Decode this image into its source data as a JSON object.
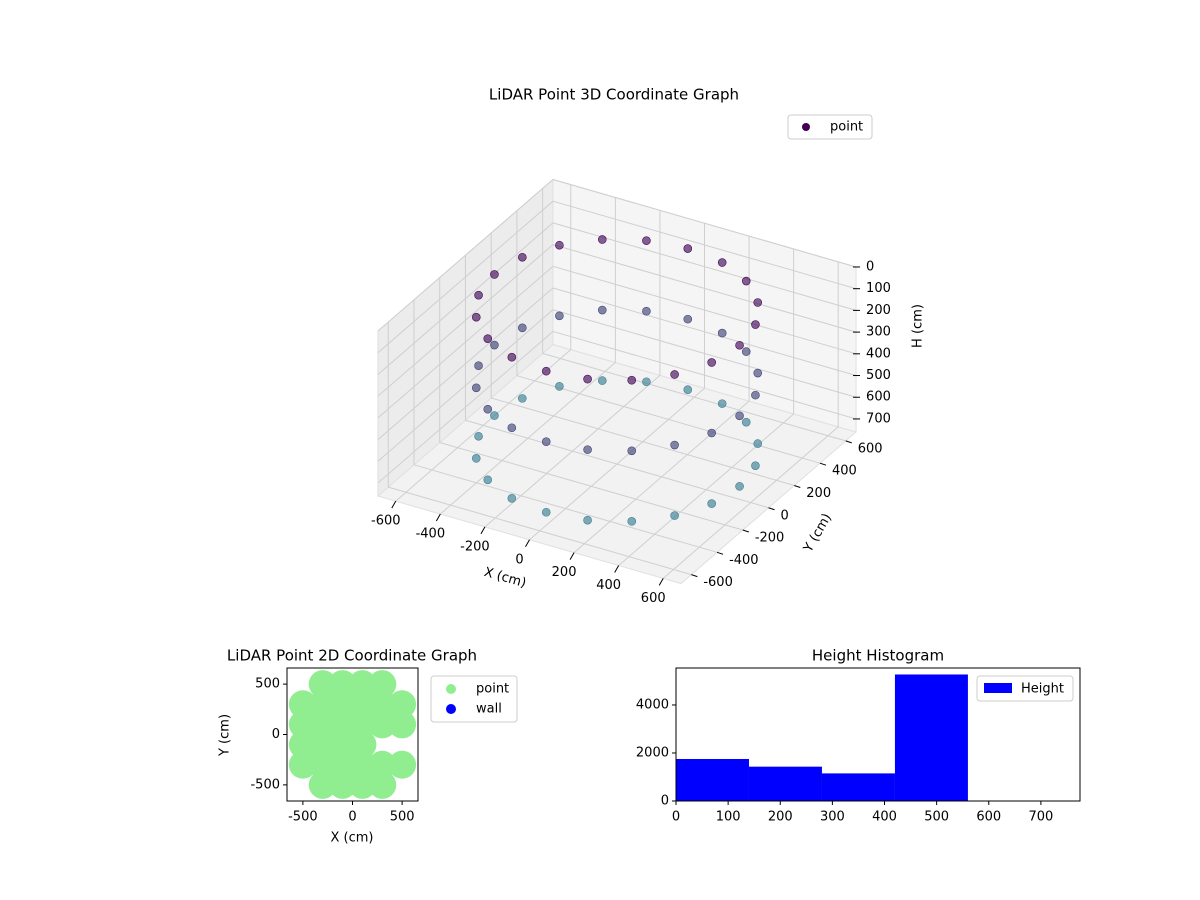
{
  "chart_data": [
    {
      "type": "scatter3d",
      "title": "LiDAR Point 3D Coordinate Graph",
      "xlabel": "X (cm)",
      "ylabel": "Y (cm)",
      "zlabel": "H (cm)",
      "series": [
        {
          "name": "point",
          "color": "#440154",
          "x": [
            550,
            523,
            445,
            323,
            170,
            0,
            -170,
            -323,
            -445,
            -523,
            -550,
            -523,
            -445,
            -323,
            -170,
            0,
            170,
            323,
            445,
            523,
            550,
            523,
            445,
            323,
            170,
            0,
            -170,
            -323,
            -445,
            -523,
            -550,
            -523,
            -445,
            -323,
            -170,
            0,
            170,
            323,
            445,
            523,
            550,
            523,
            445,
            323,
            170,
            0,
            -170,
            -323,
            -445,
            -523,
            -550,
            -523,
            -445,
            -323,
            -170,
            0,
            170,
            323,
            445,
            523
          ],
          "y": [
            0,
            170,
            323,
            445,
            523,
            550,
            523,
            445,
            323,
            170,
            0,
            -170,
            -323,
            -445,
            -523,
            -550,
            -523,
            -445,
            -323,
            -170,
            0,
            170,
            323,
            445,
            523,
            550,
            523,
            445,
            323,
            170,
            0,
            -170,
            -323,
            -445,
            -523,
            -550,
            -523,
            -445,
            -323,
            -170,
            0,
            170,
            323,
            445,
            523,
            550,
            523,
            445,
            323,
            170,
            0,
            -170,
            -323,
            -445,
            -523,
            -550,
            -523,
            -445,
            -323,
            -170
          ],
          "z": [
            50,
            50,
            50,
            50,
            50,
            50,
            50,
            50,
            50,
            50,
            50,
            50,
            50,
            50,
            50,
            50,
            50,
            50,
            50,
            50,
            375,
            375,
            375,
            375,
            375,
            375,
            375,
            375,
            375,
            375,
            375,
            375,
            375,
            375,
            375,
            375,
            375,
            375,
            375,
            375,
            700,
            700,
            700,
            700,
            700,
            700,
            700,
            700,
            700,
            700,
            700,
            700,
            700,
            700,
            700,
            700,
            700,
            700,
            700,
            700
          ]
        }
      ],
      "colormap": [
        "#440154",
        "#3b8b99"
      ],
      "xlim": [
        -680,
        680
      ],
      "ylim": [
        -680,
        680
      ],
      "zlim": [
        0,
        760
      ],
      "zinvert": true,
      "xticks": [
        -600,
        -400,
        -200,
        0,
        200,
        400,
        600
      ],
      "yticks": [
        -600,
        -400,
        -200,
        0,
        200,
        400,
        600
      ],
      "zticks": [
        0,
        100,
        200,
        300,
        400,
        500,
        600,
        700
      ],
      "grid": true,
      "legend": "upper right"
    },
    {
      "type": "scatter",
      "title": "LiDAR Point 2D Coordinate Graph",
      "xlabel": "X (cm)",
      "ylabel": "Y (cm)",
      "series": [
        {
          "name": "point",
          "color": "#90ee90",
          "x": [
            -300,
            -100,
            100,
            300,
            -500,
            -300,
            -100,
            100,
            300,
            500,
            -500,
            -300,
            -100,
            100,
            300,
            500,
            -500,
            -300,
            -100,
            100,
            -500,
            -300,
            -100,
            100,
            300,
            500,
            -300,
            -100,
            100,
            300
          ],
          "y": [
            500,
            500,
            500,
            500,
            300,
            300,
            300,
            300,
            300,
            300,
            100,
            100,
            100,
            100,
            100,
            100,
            -100,
            -100,
            -100,
            -100,
            -300,
            -300,
            -300,
            -300,
            -300,
            -300,
            -500,
            -500,
            -500,
            -500
          ]
        },
        {
          "name": "wall",
          "color": "#0000ff",
          "x": [],
          "y": []
        }
      ],
      "xlim": [
        -660,
        660
      ],
      "ylim": [
        -660,
        660
      ],
      "xticks": [
        -500,
        0,
        500
      ],
      "yticks": [
        -500,
        0,
        500
      ],
      "legend": "outside right"
    },
    {
      "type": "histogram",
      "title": "Height Histogram",
      "name": "Height",
      "color": "#0000ff",
      "bins": [
        0,
        140,
        280,
        420,
        560,
        700
      ],
      "counts": [
        1750,
        1430,
        1150,
        5270,
        15
      ],
      "xlim": [
        0,
        775
      ],
      "ylim": [
        0,
        5540
      ],
      "xticks": [
        0,
        100,
        200,
        300,
        400,
        500,
        600,
        700
      ],
      "yticks": [
        0,
        2000,
        4000
      ],
      "legend": "upper right"
    }
  ]
}
